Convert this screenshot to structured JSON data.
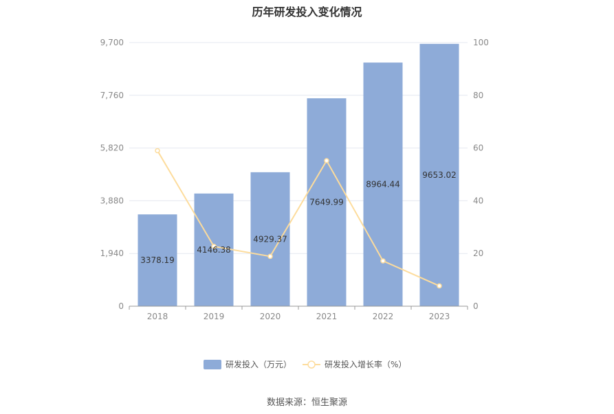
{
  "chart_data": {
    "type": "bar",
    "title": "历年研发投入变化情况",
    "categories": [
      "2018",
      "2019",
      "2020",
      "2021",
      "2022",
      "2023"
    ],
    "series": [
      {
        "name": "研发投入（万元）",
        "type": "bar",
        "axis": "left",
        "values": [
          3378.19,
          4146.38,
          4929.37,
          7649.99,
          8964.44,
          9653.02
        ],
        "labels": [
          "3378.19",
          "4146.38",
          "4929.37",
          "7649.99",
          "8964.44",
          "9653.02"
        ]
      },
      {
        "name": "研发投入增长率（%）",
        "type": "line",
        "axis": "right",
        "values": [
          59.0,
          22.7,
          18.9,
          55.2,
          17.2,
          7.7
        ]
      }
    ],
    "y_left": {
      "range": [
        0,
        9700
      ],
      "ticks": [
        "0",
        "1,940",
        "3,880",
        "5,820",
        "7,760",
        "9,700"
      ]
    },
    "y_right": {
      "range": [
        0,
        100
      ],
      "ticks": [
        "0",
        "20",
        "40",
        "60",
        "80",
        "100"
      ]
    },
    "grid": true,
    "legend_position": "bottom",
    "colors": {
      "bar": "#8eabd8",
      "line": "#fddc9c",
      "grid": "#e4e8f0",
      "axis": "#999999"
    }
  },
  "source_text": "数据来源：恒生聚源"
}
